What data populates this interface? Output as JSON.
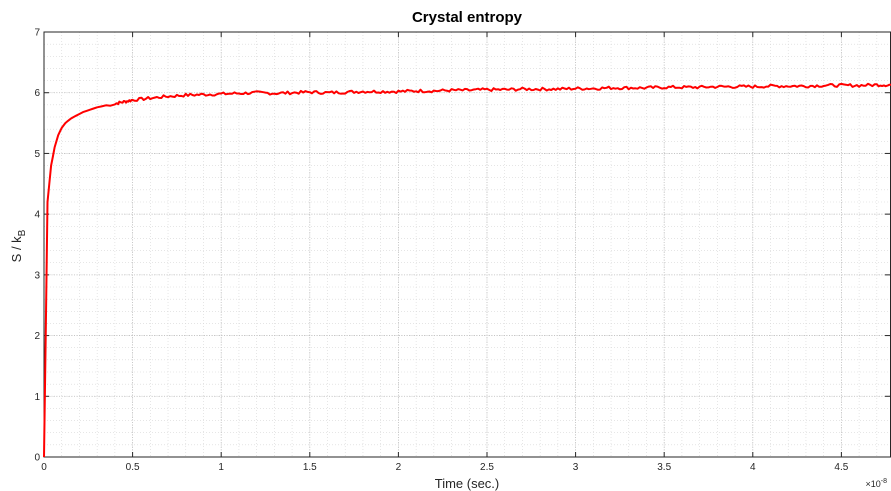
{
  "chart_data": {
    "type": "line",
    "title": "Crystal entropy",
    "xlabel": "Time (sec.)",
    "ylabel_main": "S / k",
    "ylabel_sub": "B",
    "x_exponent_prefix": "×10",
    "x_exponent": "-8",
    "xlim": [
      0,
      4.78
    ],
    "ylim": [
      0,
      7
    ],
    "x_ticks": [
      0,
      0.5,
      1,
      1.5,
      2,
      2.5,
      3,
      3.5,
      4,
      4.5
    ],
    "x_tick_labels": [
      "0",
      "0.5",
      "1",
      "1.5",
      "2",
      "2.5",
      "3",
      "3.5",
      "4",
      "4.5"
    ],
    "y_ticks": [
      0,
      1,
      2,
      3,
      4,
      5,
      6,
      7
    ],
    "y_tick_labels": [
      "0",
      "1",
      "2",
      "3",
      "4",
      "5",
      "6",
      "7"
    ],
    "grid": true,
    "minor_grid": true,
    "line_color": "#ff0000",
    "series": [
      {
        "x": [
          0,
          0.02,
          0.04,
          0.06,
          0.08,
          0.1,
          0.12,
          0.15,
          0.18,
          0.22,
          0.26,
          0.3,
          0.35,
          0.4,
          0.45,
          0.5,
          0.6,
          0.7,
          0.8,
          0.9,
          1.0,
          1.1,
          1.2,
          1.3,
          1.4,
          1.5,
          1.6,
          1.7,
          1.8,
          1.9,
          2.0,
          2.1,
          2.2,
          2.3,
          2.4,
          2.5,
          2.6,
          2.7,
          2.8,
          2.9,
          3.0,
          3.1,
          3.2,
          3.3,
          3.4,
          3.5,
          3.6,
          3.7,
          3.8,
          3.9,
          4.0,
          4.1,
          4.2,
          4.3,
          4.4,
          4.5,
          4.6,
          4.7,
          4.78
        ],
        "y": [
          0,
          4.2,
          4.8,
          5.1,
          5.3,
          5.42,
          5.5,
          5.57,
          5.62,
          5.68,
          5.72,
          5.76,
          5.79,
          5.82,
          5.85,
          5.88,
          5.91,
          5.94,
          5.96,
          5.97,
          5.98,
          5.99,
          6.0,
          5.99,
          6.0,
          6.01,
          6.0,
          6.01,
          6.02,
          6.02,
          6.02,
          6.03,
          6.03,
          6.04,
          6.04,
          6.05,
          6.05,
          6.06,
          6.06,
          6.06,
          6.07,
          6.07,
          6.08,
          6.08,
          6.08,
          6.09,
          6.09,
          6.09,
          6.1,
          6.1,
          6.1,
          6.11,
          6.11,
          6.11,
          6.12,
          6.12,
          6.12,
          6.13,
          6.13
        ]
      }
    ]
  }
}
